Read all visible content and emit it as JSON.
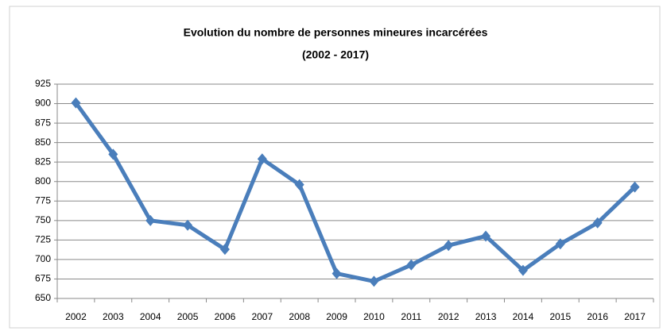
{
  "chart_data": {
    "type": "line",
    "title": "Evolution du nombre de personnes  mineures incarcérées",
    "subtitle": "(2002 - 2017)",
    "categories": [
      "2002",
      "2003",
      "2004",
      "2005",
      "2006",
      "2007",
      "2008",
      "2009",
      "2010",
      "2011",
      "2012",
      "2013",
      "2014",
      "2015",
      "2016",
      "2017"
    ],
    "values": [
      901,
      835,
      750,
      744,
      713,
      829,
      796,
      682,
      672,
      693,
      718,
      730,
      686,
      720,
      747,
      793
    ],
    "color": "#4a7ebb",
    "ylim": [
      650,
      925
    ],
    "yticks": [
      650,
      675,
      700,
      725,
      750,
      775,
      800,
      825,
      850,
      875,
      900,
      925
    ],
    "grid": true
  }
}
